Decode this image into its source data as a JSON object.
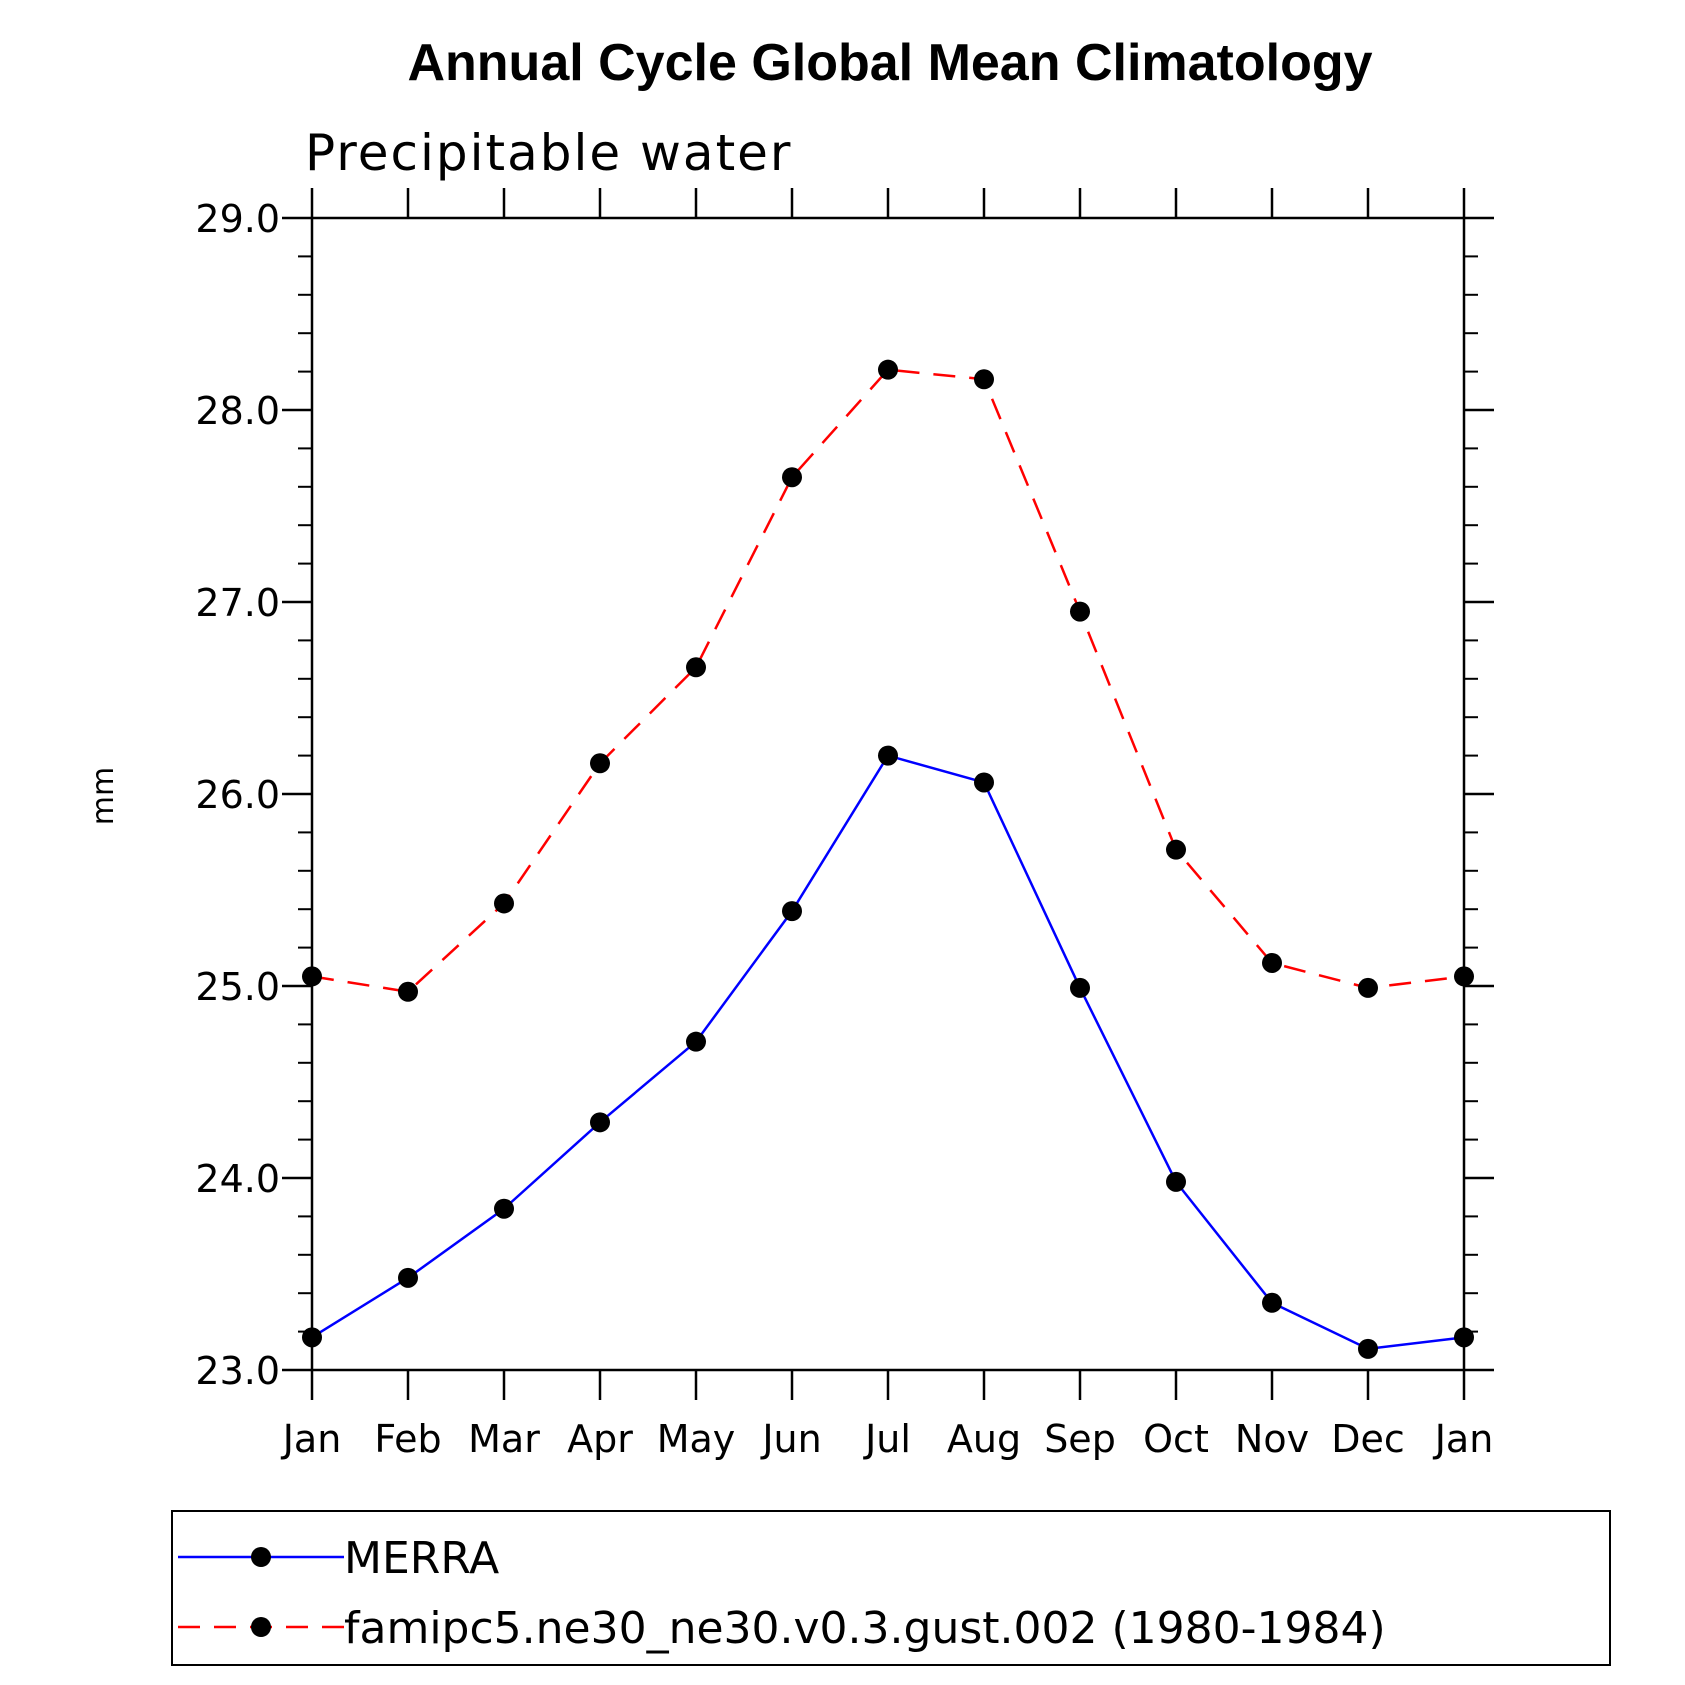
{
  "chart_data": {
    "type": "line",
    "title": "Annual Cycle Global Mean Climatology",
    "subtitle": "Precipitable water",
    "xlabel": "",
    "ylabel": "mm",
    "categories": [
      "Jan",
      "Feb",
      "Mar",
      "Apr",
      "May",
      "Jun",
      "Jul",
      "Aug",
      "Sep",
      "Oct",
      "Nov",
      "Dec",
      "Jan"
    ],
    "ylim": [
      23.0,
      29.0
    ],
    "yticks": [
      "23.0",
      "24.0",
      "25.0",
      "26.0",
      "27.0",
      "28.0",
      "29.0"
    ],
    "grid": false,
    "legend_position": "bottom",
    "series": [
      {
        "name": "MERRA",
        "color": "#0000ff",
        "line_style": "solid",
        "marker": "filled-circle",
        "values": [
          23.17,
          23.48,
          23.84,
          24.29,
          24.71,
          25.39,
          26.2,
          26.06,
          24.99,
          23.98,
          23.35,
          23.11,
          23.17
        ]
      },
      {
        "name": "famipc5.ne30_ne30.v0.3.gust.002 (1980-1984)",
        "color": "#ff0000",
        "line_style": "dashed",
        "marker": "filled-circle",
        "values": [
          25.05,
          24.97,
          25.43,
          26.16,
          26.66,
          27.65,
          28.21,
          28.16,
          26.95,
          25.71,
          25.12,
          24.99,
          25.05
        ]
      }
    ]
  }
}
